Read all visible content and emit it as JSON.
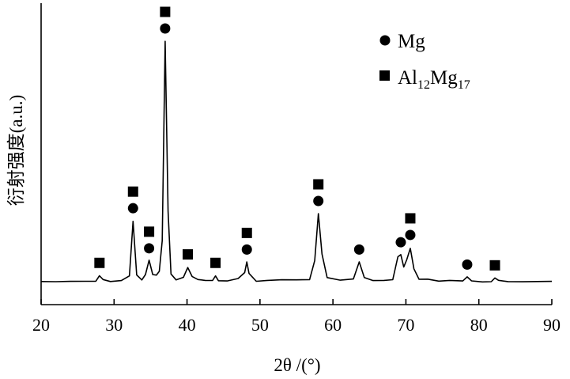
{
  "chart_data": {
    "type": "line",
    "title": "",
    "xlabel": "2θ /(°)",
    "ylabel": "衍射强度(a.u.)",
    "xlim": [
      20,
      90
    ],
    "ylim": [
      0,
      100
    ],
    "xticks": [
      20,
      30,
      40,
      50,
      60,
      70,
      80,
      90
    ],
    "xtick_labels": [
      "20",
      "30",
      "40",
      "50",
      "60",
      "70",
      "80",
      "90"
    ],
    "yticks_shown": false,
    "grid": false,
    "legend_position": "top-right",
    "legend": [
      {
        "marker": "circle",
        "label": "Mg"
      },
      {
        "marker": "square",
        "label_main": "Al",
        "label_sub1": "12",
        "label_mid": "Mg",
        "label_sub2": "17"
      }
    ],
    "series": [
      {
        "x": [
          20,
          22,
          24,
          26,
          27.5,
          28.0,
          28.5,
          29.5,
          31,
          32.1,
          32.6,
          33.1,
          33.8,
          34.3,
          34.8,
          35.3,
          35.8,
          36.2,
          36.6,
          37.0,
          37.4,
          37.8,
          38.5,
          39.5,
          40.1,
          40.7,
          41.5,
          42.5,
          43.5,
          43.9,
          44.3,
          45.5,
          47,
          47.9,
          48.2,
          48.5,
          49.5,
          51,
          53,
          55,
          56.8,
          57.5,
          58.0,
          58.5,
          59.2,
          61,
          62.8,
          63.6,
          64.3,
          65.5,
          67,
          68.2,
          68.9,
          69.3,
          69.7,
          70.1,
          70.6,
          71.1,
          71.8,
          73,
          74.5,
          76,
          77.8,
          78.4,
          79.0,
          80.5,
          81.7,
          82.2,
          82.7,
          84,
          86,
          88,
          90
        ],
        "y": [
          1,
          1,
          1.2,
          1.3,
          1.5,
          3.5,
          1.5,
          1.4,
          1.5,
          3,
          26,
          4,
          2,
          4,
          9.5,
          4,
          4,
          5.5,
          18,
          100,
          30,
          4,
          2,
          2.5,
          7,
          3,
          1.8,
          1.5,
          1.5,
          3.5,
          1.6,
          1.5,
          2,
          5,
          9,
          4,
          1.5,
          1.5,
          1.7,
          1.6,
          2,
          10,
          29,
          12,
          2.5,
          1.7,
          2,
          9,
          3,
          1.7,
          1.7,
          2,
          11,
          12,
          7,
          10,
          15,
          6,
          2.2,
          2.2,
          1.5,
          1.3,
          1.5,
          2.8,
          1.4,
          1.2,
          1.3,
          2.5,
          1.2,
          1.1,
          1,
          1,
          1
        ]
      }
    ],
    "peak_annotations": [
      {
        "x": 28.0,
        "markers": [
          "square"
        ]
      },
      {
        "x": 32.6,
        "markers": [
          "circle",
          "square"
        ]
      },
      {
        "x": 34.8,
        "markers": [
          "circle",
          "square"
        ]
      },
      {
        "x": 37.0,
        "markers": [
          "circle",
          "square"
        ]
      },
      {
        "x": 40.1,
        "markers": [
          "square"
        ]
      },
      {
        "x": 43.9,
        "markers": [
          "square"
        ]
      },
      {
        "x": 48.2,
        "markers": [
          "circle",
          "square"
        ]
      },
      {
        "x": 58.0,
        "markers": [
          "circle",
          "square"
        ]
      },
      {
        "x": 63.6,
        "markers": [
          "circle"
        ]
      },
      {
        "x": 69.3,
        "markers": [
          "circle"
        ]
      },
      {
        "x": 70.6,
        "markers": [
          "circle",
          "square"
        ]
      },
      {
        "x": 78.4,
        "markers": [
          "circle"
        ]
      },
      {
        "x": 82.2,
        "markers": [
          "square"
        ]
      }
    ]
  }
}
